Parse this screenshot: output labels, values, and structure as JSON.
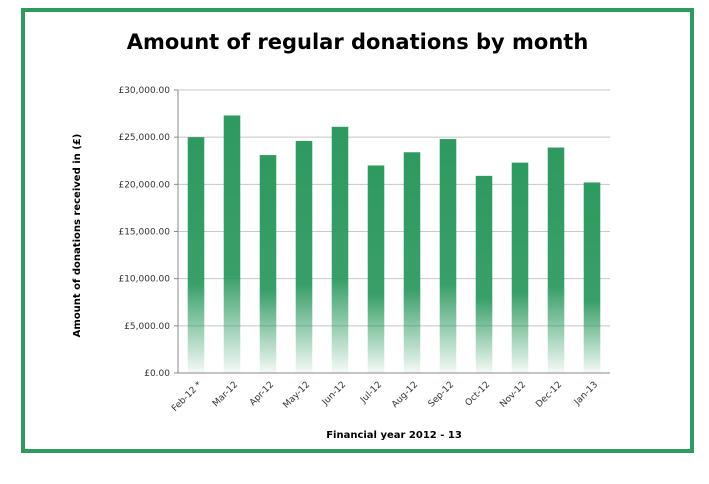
{
  "chart_data": {
    "type": "bar",
    "title": "Amount of regular donations by month",
    "xlabel": "Financial year 2012 - 13",
    "ylabel": "Amount of donations received in (£)",
    "categories": [
      "Feb-12 *",
      "Mar-12",
      "Apr-12",
      "May-12",
      "Jun-12",
      "Jul-12",
      "Aug-12",
      "Sep-12",
      "Oct-12",
      "Nov-12",
      "Dec-12",
      "Jan-13"
    ],
    "values": [
      25000,
      27300,
      23100,
      24600,
      26100,
      22000,
      23400,
      24800,
      20900,
      22300,
      23900,
      20200
    ],
    "ylim": [
      0,
      30000
    ],
    "yticks": [
      0,
      5000,
      10000,
      15000,
      20000,
      25000,
      30000
    ],
    "ytick_labels": [
      "£0.00",
      "£5,000.00",
      "£10,000.00",
      "£15,000.00",
      "£20,000.00",
      "£25,000.00",
      "£30,000.00"
    ],
    "grid": true,
    "colors": {
      "bar": "#2e9a60",
      "frame": "#2e9a60",
      "grid": "#c8c8c8"
    }
  }
}
